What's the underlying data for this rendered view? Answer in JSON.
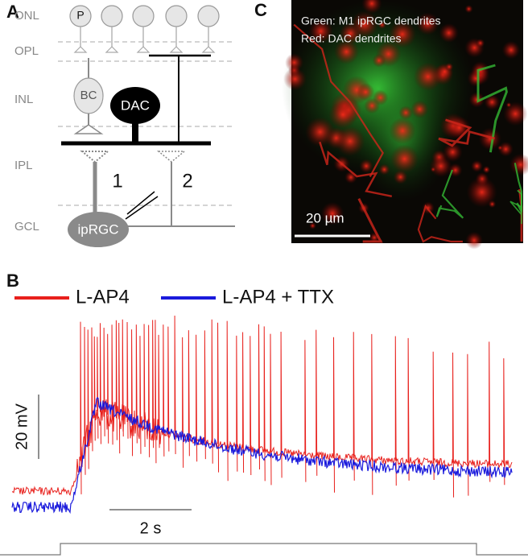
{
  "panels": [
    {
      "label": "A",
      "layers": [
        "ONL",
        "OPL",
        "INL",
        "IPL",
        "GCL"
      ],
      "cells": [
        "P",
        "BC",
        "DAC",
        "ipRGC"
      ],
      "pathways": [
        "1",
        "2"
      ]
    },
    {
      "label": "B",
      "legend": [
        {
          "name": "L-AP4",
          "color": "#e8201c"
        },
        {
          "name": "L-AP4 + TTX",
          "color": "#1a1adc"
        }
      ],
      "scale_bars": [
        "20 mV",
        "2 s"
      ]
    },
    {
      "label": "C",
      "caption": [
        "Green: M1 ipRGC dendrites",
        "Red: DAC dendrites"
      ],
      "scale_bar": "20 µm"
    }
  ]
}
